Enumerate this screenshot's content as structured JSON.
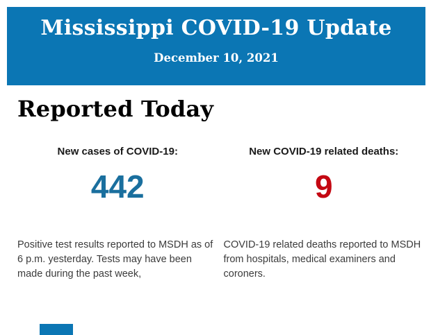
{
  "header": {
    "title": "Mississippi COVID-19 Update",
    "date": "December 10, 2021",
    "background_color": "#0b76b4",
    "text_color": "#ffffff"
  },
  "section": {
    "heading": "Reported Today"
  },
  "stats": [
    {
      "label": "New cases of COVID-19:",
      "value": "442",
      "value_color": "#1a6f9e",
      "description": "Positive test results reported to MSDH as of 6 p.m. yesterday. Tests may have been made during the past week,"
    },
    {
      "label": "New COVID-19 related deaths:",
      "value": "9",
      "value_color": "#c40812",
      "description": "COVID-19 related deaths reported to MSDH from hospitals, medical examiners and coroners."
    }
  ],
  "footer": {
    "next_section_color": "#0b76b4"
  }
}
